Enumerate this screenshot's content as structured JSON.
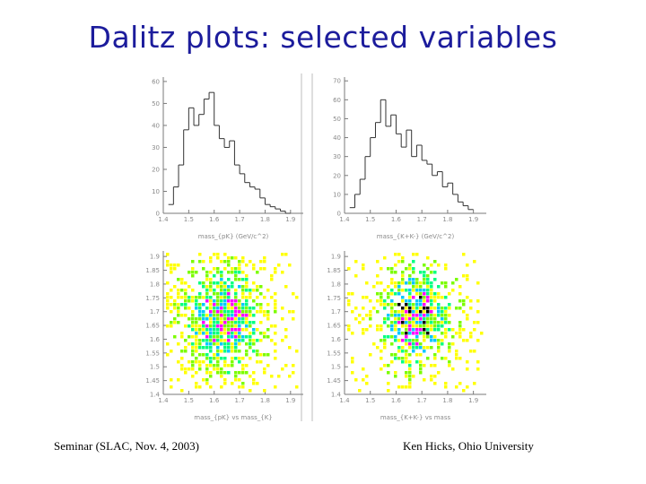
{
  "slide": {
    "title": "Dalitz plots: selected variables",
    "footer_left": "Seminar (SLAC, Nov. 4, 2003)",
    "footer_right": "Ken Hicks, Ohio University"
  },
  "colors": {
    "title": "#1c1c9c",
    "density_levels": [
      "#ffff00",
      "#7cfc00",
      "#00ff80",
      "#00c8ff",
      "#ff00ff",
      "#000000"
    ]
  },
  "chart_data": [
    {
      "type": "bar",
      "panel": "top-left histogram",
      "xlabel": "mass_{pK} (GeV/c^2)",
      "x_ticks": [
        "1.4",
        "1.5",
        "1.6",
        "1.7",
        "1.8",
        "1.9"
      ],
      "y_ticks": [
        "0",
        "10",
        "20",
        "30",
        "40",
        "50",
        "60"
      ],
      "xlim": [
        1.4,
        1.95
      ],
      "ylim": [
        0,
        62
      ],
      "bin_edges": [
        1.42,
        1.44,
        1.46,
        1.48,
        1.5,
        1.52,
        1.54,
        1.56,
        1.58,
        1.6,
        1.62,
        1.64,
        1.66,
        1.68,
        1.7,
        1.72,
        1.74,
        1.76,
        1.78,
        1.8,
        1.82,
        1.84,
        1.86,
        1.88,
        1.9
      ],
      "values": [
        4,
        12,
        22,
        38,
        48,
        40,
        45,
        52,
        55,
        40,
        34,
        30,
        33,
        22,
        18,
        14,
        12,
        11,
        7,
        4,
        3,
        2,
        1,
        0
      ]
    },
    {
      "type": "bar",
      "panel": "top-right histogram",
      "xlabel": "mass_{K+K-} (GeV/c^2)",
      "x_ticks": [
        "1.4",
        "1.5",
        "1.6",
        "1.7",
        "1.8",
        "1.9"
      ],
      "y_ticks": [
        "0",
        "10",
        "20",
        "30",
        "40",
        "50",
        "60",
        "70"
      ],
      "xlim": [
        1.4,
        1.95
      ],
      "ylim": [
        0,
        72
      ],
      "bin_edges": [
        1.42,
        1.44,
        1.46,
        1.48,
        1.5,
        1.52,
        1.54,
        1.56,
        1.58,
        1.6,
        1.62,
        1.64,
        1.66,
        1.68,
        1.7,
        1.72,
        1.74,
        1.76,
        1.78,
        1.8,
        1.82,
        1.84,
        1.86,
        1.88,
        1.9
      ],
      "values": [
        3,
        10,
        18,
        30,
        40,
        48,
        60,
        46,
        52,
        42,
        35,
        44,
        30,
        36,
        28,
        26,
        20,
        22,
        14,
        16,
        10,
        6,
        4,
        2
      ]
    },
    {
      "type": "heatmap",
      "panel": "bottom-left dalitz",
      "xlabel": "mass_{pK} vs mass_{K}",
      "x_ticks": [
        "1.4",
        "1.5",
        "1.6",
        "1.7",
        "1.8",
        "1.9"
      ],
      "y_ticks": [
        "1.4",
        "1.45",
        "1.5",
        "1.55",
        "1.6",
        "1.65",
        "1.7",
        "1.75",
        "1.8",
        "1.85",
        "1.9"
      ],
      "xlim": [
        1.4,
        1.95
      ],
      "ylim": [
        1.4,
        1.92
      ],
      "center": [
        1.63,
        1.68
      ],
      "spread": [
        0.12,
        0.14
      ],
      "peak_level": 4
    },
    {
      "type": "heatmap",
      "panel": "bottom-right dalitz",
      "xlabel": "mass_{K+K-} vs mass",
      "x_ticks": [
        "1.4",
        "1.5",
        "1.6",
        "1.7",
        "1.8",
        "1.9"
      ],
      "y_ticks": [
        "1.4",
        "1.45",
        "1.5",
        "1.55",
        "1.6",
        "1.65",
        "1.7",
        "1.75",
        "1.8",
        "1.85",
        "1.9"
      ],
      "xlim": [
        1.4,
        1.95
      ],
      "ylim": [
        1.4,
        1.92
      ],
      "center": [
        1.67,
        1.69
      ],
      "spread": [
        0.1,
        0.13
      ],
      "peak_level": 5
    }
  ]
}
